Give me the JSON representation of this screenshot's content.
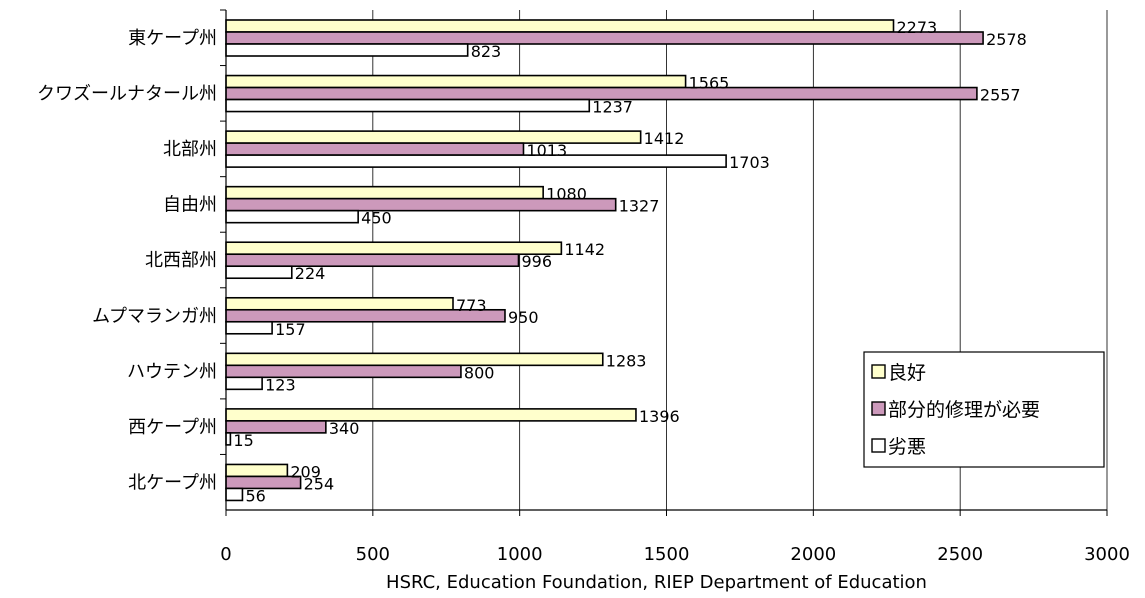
{
  "chart_data": {
    "type": "bar",
    "orientation": "horizontal",
    "categories": [
      "東ケープ州",
      "クワズールナタール州",
      "北部州",
      "自由州",
      "北西部州",
      "ムプマランガ州",
      "ハウテン州",
      "西ケープ州",
      "北ケープ州"
    ],
    "series": [
      {
        "name": "良好",
        "color": "#ffffcc",
        "values": [
          2273,
          1565,
          1412,
          1080,
          1142,
          773,
          1283,
          1396,
          209
        ]
      },
      {
        "name": "部分的修理が必要",
        "color": "#cc99bb",
        "values": [
          2578,
          2557,
          1013,
          1327,
          996,
          950,
          800,
          340,
          254
        ]
      },
      {
        "name": "劣悪",
        "color": "#ffffff",
        "values": [
          823,
          1237,
          1703,
          450,
          224,
          157,
          123,
          15,
          56
        ]
      }
    ],
    "xlim": [
      0,
      3000
    ],
    "xticks": [
      0,
      500,
      1000,
      1500,
      2000,
      2500,
      3000
    ],
    "xlabel": "HSRC, Education Foundation, RIEP Department of Education",
    "grid": "vertical",
    "legend_position": "bottom-right"
  }
}
